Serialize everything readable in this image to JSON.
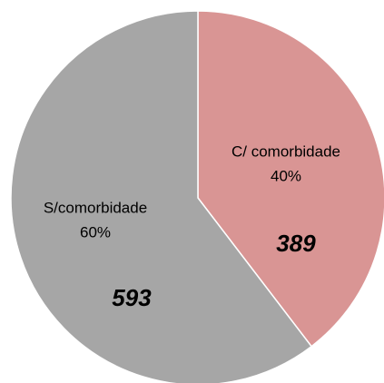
{
  "chart_data": {
    "type": "pie",
    "categories": [
      "C/ comorbidade",
      "S/comorbidade"
    ],
    "values": [
      389,
      593
    ],
    "percent_labels": [
      "40%",
      "60%"
    ],
    "colors": [
      "#d99594",
      "#a6a6a6"
    ]
  }
}
